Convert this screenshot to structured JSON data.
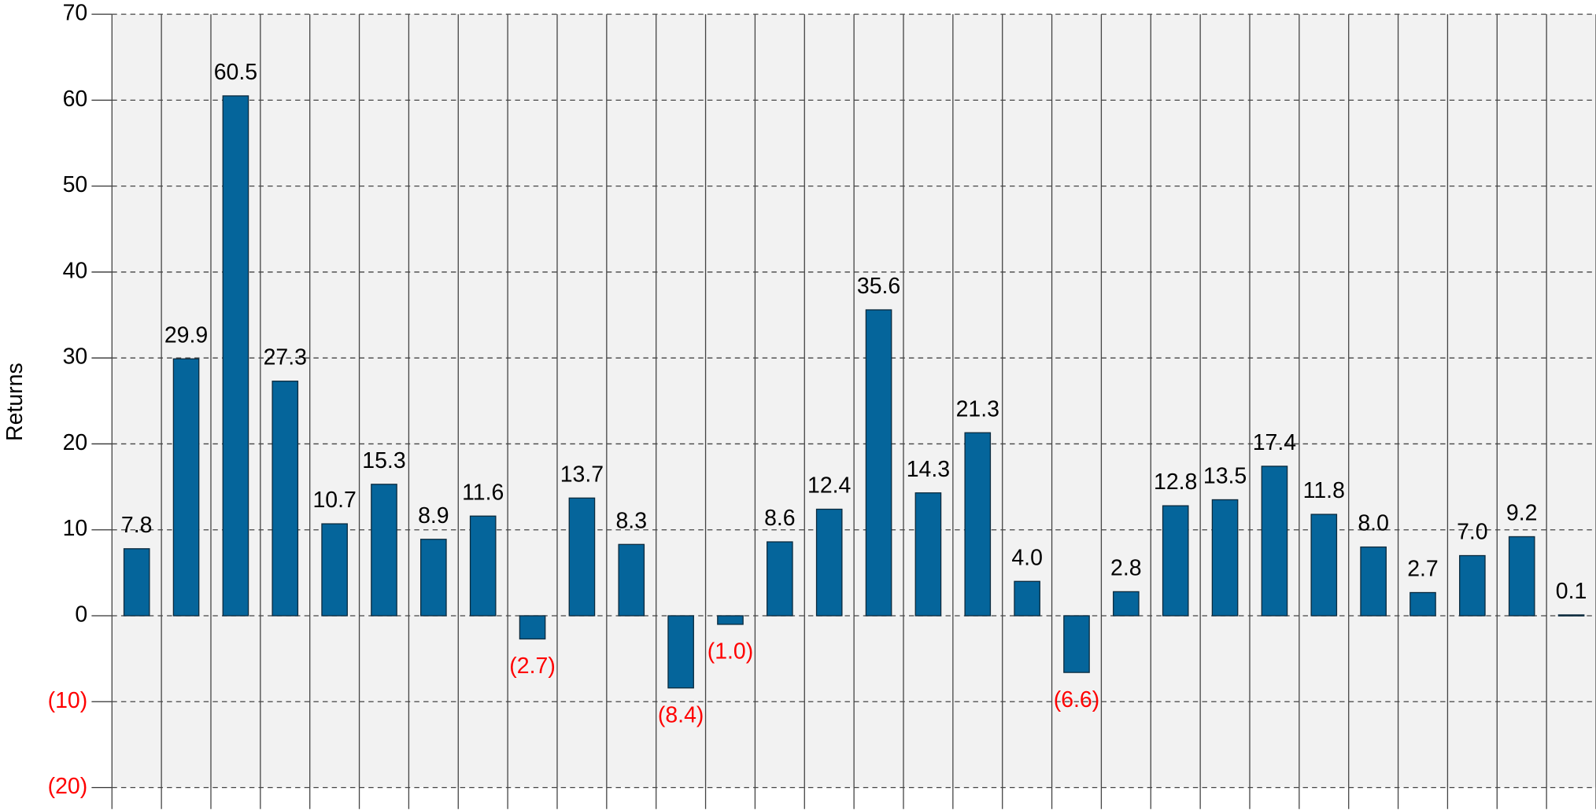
{
  "chart_data": {
    "type": "bar",
    "y_label": "Returns",
    "values": [
      7.8,
      29.9,
      60.5,
      27.3,
      10.7,
      15.3,
      8.9,
      11.6,
      -2.7,
      13.7,
      8.3,
      -8.4,
      -1.0,
      8.6,
      12.4,
      35.6,
      14.3,
      21.3,
      4.0,
      -6.6,
      2.8,
      12.8,
      13.5,
      17.4,
      11.8,
      8.0,
      2.7,
      7.0,
      9.2,
      0.1
    ],
    "value_labels": [
      "7.8",
      "29.9",
      "60.5",
      "27.3",
      "10.7",
      "15.3",
      "8.9",
      "11.6",
      "(2.7)",
      "13.7",
      "8.3",
      "(8.4)",
      "(1.0)",
      "8.6",
      "12.4",
      "35.6",
      "14.3",
      "21.3",
      "4.0",
      "(6.6)",
      "2.8",
      "12.8",
      "13.5",
      "17.4",
      "11.8",
      "8.0",
      "2.7",
      "7.0",
      "9.2",
      "0.1"
    ],
    "color": "#05659b",
    "negative_color": "#ff0000",
    "background": "#f2f2f2",
    "ylim": [
      -20,
      70
    ],
    "yticks": [
      {
        "value": -20,
        "label": "(20)"
      },
      {
        "value": -10,
        "label": "(10)"
      },
      0,
      10,
      20,
      30,
      40,
      50,
      60,
      70
    ],
    "grid": true
  }
}
